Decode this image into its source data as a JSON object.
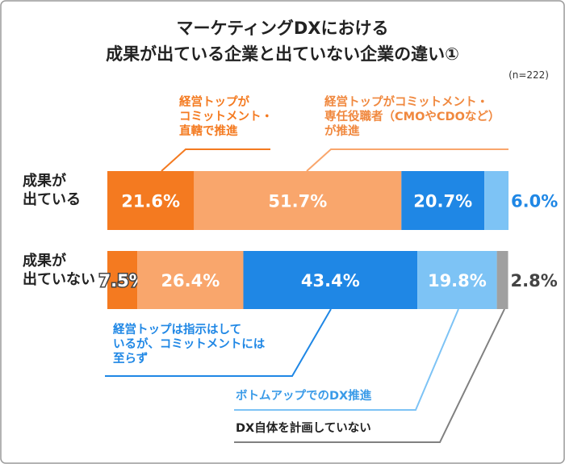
{
  "chart_data": {
    "type": "stacked-bar",
    "orientation": "horizontal",
    "title": "マーケティングDXにおける",
    "subtitle": "成果が出ている企業と出ていない企業の違い①",
    "note": "(n=222)",
    "categories": [
      "成果が\n出ている",
      "成果が\n出ていない"
    ],
    "xlim": [
      0,
      100
    ],
    "series": [
      {
        "name": "経営トップが\nコミットメント・\n直轄で推進",
        "color": "#f47a20",
        "values": [
          21.6,
          7.5
        ],
        "value_labels": [
          "21.6%",
          "7.5%"
        ]
      },
      {
        "name": "経営トップがコミットメント・\n専任役職者（CMOやCDOなど）\nが推進",
        "color": "#f9a66c",
        "values": [
          51.7,
          26.4
        ],
        "value_labels": [
          "51.7%",
          "26.4%"
        ]
      },
      {
        "name": "経営トップは指示はして\nいるが、コミットメントには\n至らず",
        "color": "#1f87e5",
        "values": [
          20.7,
          43.4
        ],
        "value_labels": [
          "20.7%",
          "43.4%"
        ]
      },
      {
        "name": "ボトムアップでのDX推進",
        "color": "#7dc3f5",
        "values": [
          6.0,
          19.8
        ],
        "value_labels": [
          "6.0%",
          "19.8%"
        ]
      },
      {
        "name": "DX自体を計画していない",
        "color": "#a0a0a0",
        "values": [
          null,
          2.8
        ],
        "value_labels": [
          null,
          "2.8%"
        ]
      }
    ]
  }
}
